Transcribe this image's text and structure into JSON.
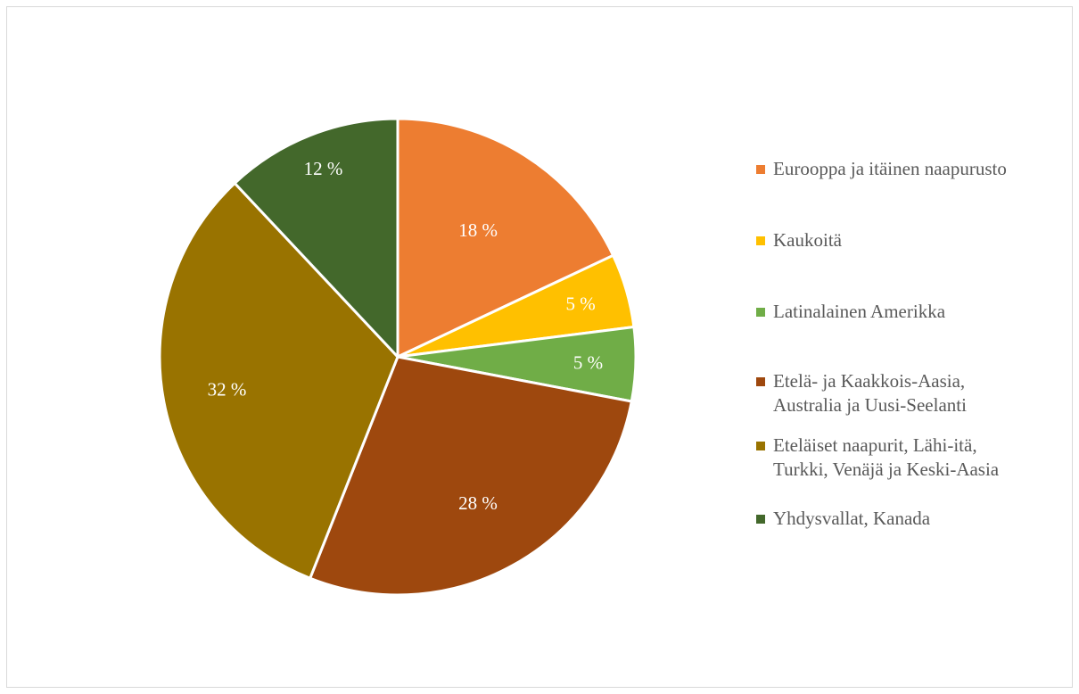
{
  "chart_data": {
    "type": "pie",
    "title": "",
    "slices": [
      {
        "label": "Eurooppa ja itäinen naapurusto",
        "value": 18,
        "display": "18 %",
        "color": "#ED7D31"
      },
      {
        "label": "Kaukoitä",
        "value": 5,
        "display": "5 %",
        "color": "#FFC000"
      },
      {
        "label": "Latinalainen Amerikka",
        "value": 5,
        "display": "5 %",
        "color": "#70AD47"
      },
      {
        "label": "Etelä- ja Kaakkois-Aasia,\nAustralia ja Uusi-Seelanti",
        "value": 28,
        "display": "28 %",
        "color": "#9E480E"
      },
      {
        "label": "Eteläiset naapurit, Lähi-itä,\nTurkki, Venäjä ja Keski-Aasia",
        "value": 32,
        "display": "32 %",
        "color": "#997300"
      },
      {
        "label": "Yhdysvallat, Kanada",
        "value": 12,
        "display": "12 %",
        "color": "#43682B"
      }
    ],
    "start_angle": "12 o'clock",
    "direction": "clockwise",
    "legend_position": "right"
  }
}
